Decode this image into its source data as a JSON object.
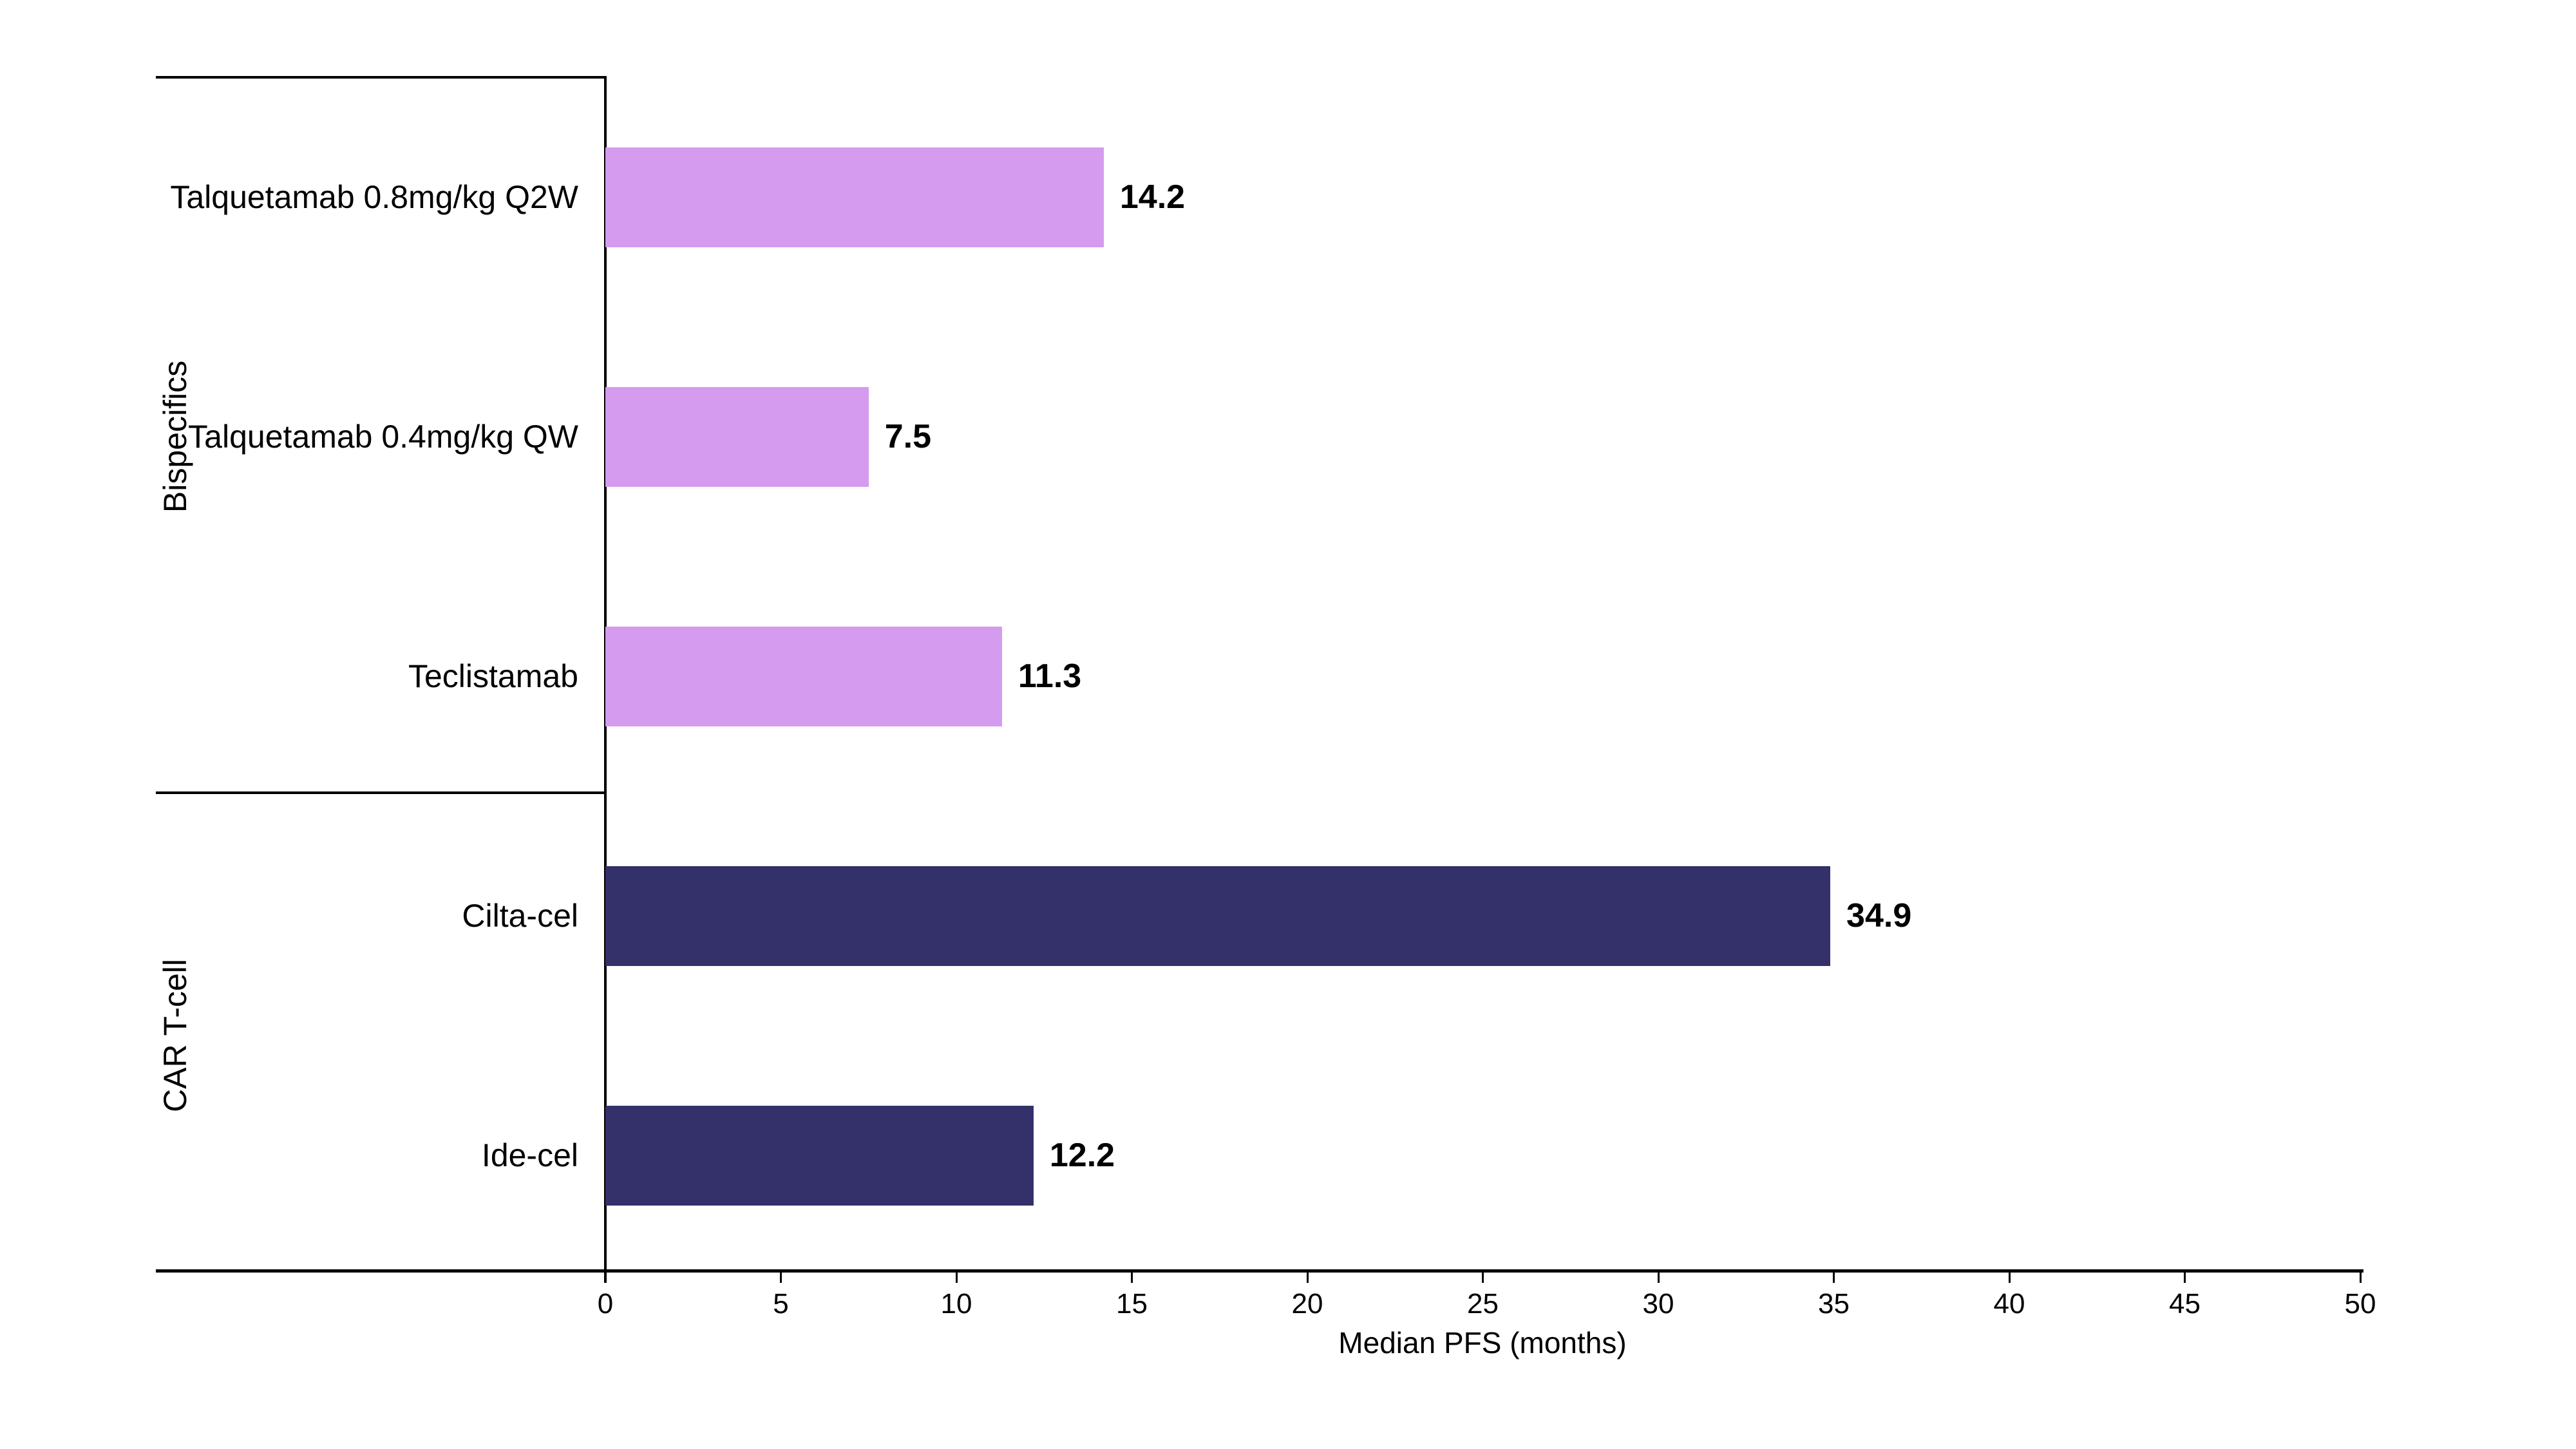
{
  "chart_data": {
    "type": "bar",
    "orientation": "horizontal",
    "xlabel": "Median PFS (months)",
    "xlim": [
      0,
      50
    ],
    "xticks": [
      0,
      5,
      10,
      15,
      20,
      25,
      30,
      35,
      40,
      45,
      50
    ],
    "grid": false,
    "legend": "none",
    "groups": [
      {
        "label": "Bispecifics",
        "color": "#D59BEF",
        "bars": [
          {
            "label": "Talquetamab 0.8mg/kg Q2W",
            "value": 14.2
          },
          {
            "label": "Talquetamab 0.4mg/kg QW",
            "value": 7.5
          },
          {
            "label": "Teclistamab",
            "value": 11.3
          }
        ]
      },
      {
        "label": "CAR T-cell",
        "color": "#343069",
        "bars": [
          {
            "label": "Cilta-cel",
            "value": 34.9
          },
          {
            "label": "Ide-cel",
            "value": 12.2
          }
        ]
      }
    ]
  },
  "colors": {
    "axis": "#000000",
    "text": "#000000",
    "background": "#ffffff"
  }
}
